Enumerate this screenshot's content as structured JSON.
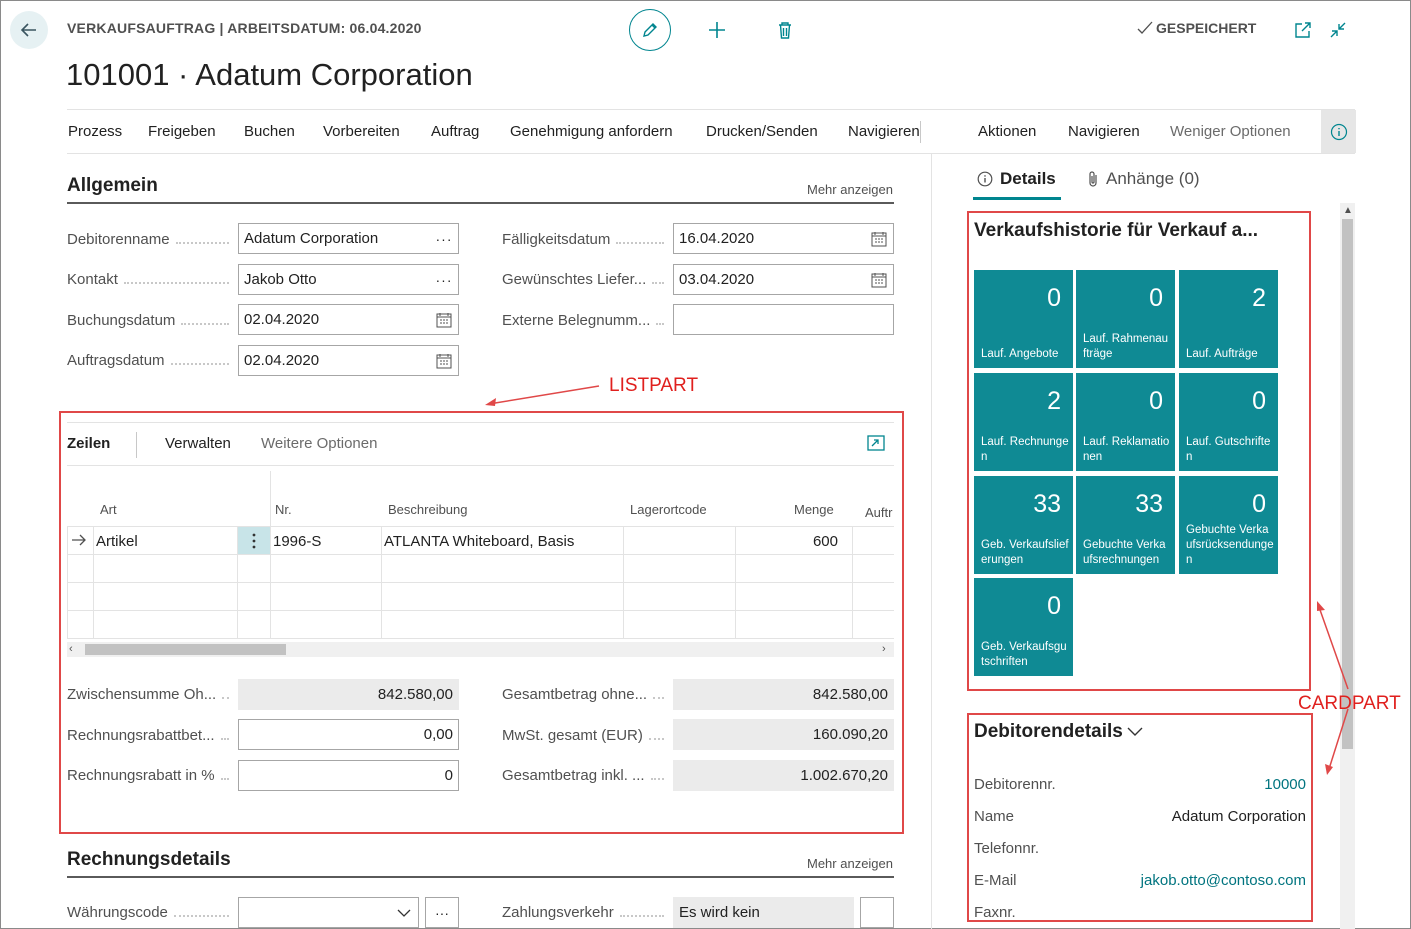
{
  "header": {
    "breadcrumb": "VERKAUFSAUFTRAG | ARBEITSDATUM: 06.04.2020",
    "title": "101001 · Adatum Corporation",
    "saved_label": "GESPEICHERT"
  },
  "actions": [
    "Prozess",
    "Freigeben",
    "Buchen",
    "Vorbereiten",
    "Auftrag",
    "Genehmigung anfordern",
    "Drucken/Senden",
    "Navigieren",
    "Aktionen",
    "Navigieren",
    "Weniger Optionen"
  ],
  "general": {
    "title": "Allgemein",
    "more": "Mehr anzeigen",
    "fields": {
      "debitorenname": {
        "label": "Debitorenname",
        "value": "Adatum Corporation"
      },
      "kontakt": {
        "label": "Kontakt",
        "value": "Jakob Otto"
      },
      "buchungsdatum": {
        "label": "Buchungsdatum",
        "value": "02.04.2020"
      },
      "auftragsdatum": {
        "label": "Auftragsdatum",
        "value": "02.04.2020"
      },
      "faelligkeitsdatum": {
        "label": "Fälligkeitsdatum",
        "value": "16.04.2020"
      },
      "gew_lieferdatum": {
        "label": "Gewünschtes Liefer...",
        "value": "03.04.2020"
      },
      "ext_belegnummer": {
        "label": "Externe Belegnumm...",
        "value": ""
      }
    }
  },
  "lines": {
    "tabs": {
      "zeilen": "Zeilen",
      "verwalten": "Verwalten",
      "weitere": "Weitere Optionen"
    },
    "columns": {
      "art": "Art",
      "nr": "Nr.",
      "beschreibung": "Beschreibung",
      "lagerortcode": "Lagerortcode",
      "menge": "Menge",
      "auftr": "Auftr"
    },
    "row": {
      "art": "Artikel",
      "nr": "1996-S",
      "beschreibung": "ATLANTA Whiteboard, Basis",
      "lagerortcode": "",
      "menge": "600"
    }
  },
  "totals": {
    "zwischensumme": {
      "label": "Zwischensumme Oh...",
      "value": "842.580,00"
    },
    "rechnungsrabattbetrag": {
      "label": "Rechnungsrabattbet...",
      "value": "0,00"
    },
    "rechnungsrabatt_pct": {
      "label": "Rechnungsrabatt in %",
      "value": "0"
    },
    "gesamt_ohne": {
      "label": "Gesamtbetrag ohne...",
      "value": "842.580,00"
    },
    "mwst": {
      "label": "MwSt. gesamt (EUR)",
      "value": "160.090,20"
    },
    "gesamt_inkl": {
      "label": "Gesamtbetrag inkl. ...",
      "value": "1.002.670,20"
    }
  },
  "invoice": {
    "title": "Rechnungsdetails",
    "more": "Mehr anzeigen",
    "waehrungscode_label": "Währungscode",
    "waehrungscode_value": "",
    "zahlungsverkehr_label": "Zahlungsverkehr",
    "zahlungsverkehr_value": "Es wird kein"
  },
  "factbox": {
    "tab_details": "Details",
    "tab_attachments": "Anhänge (0)",
    "history_title": "Verkaufshistorie für Verkauf a...",
    "tiles": [
      {
        "value": "0",
        "label": "Lauf. Angebote"
      },
      {
        "value": "0",
        "label": "Lauf. Rahmenaufträge"
      },
      {
        "value": "2",
        "label": "Lauf. Aufträge"
      },
      {
        "value": "2",
        "label": "Lauf. Rechnungen"
      },
      {
        "value": "0",
        "label": "Lauf. Reklamationen"
      },
      {
        "value": "0",
        "label": "Lauf. Gutschriften"
      },
      {
        "value": "33",
        "label": "Geb. Verkaufslieferungen"
      },
      {
        "value": "33",
        "label": "Gebuchte Verkaufsrechnungen"
      },
      {
        "value": "0",
        "label": "Gebuchte Verkaufsrücksendungen"
      },
      {
        "value": "0",
        "label": "Geb. Verkaufsgutschriften"
      }
    ],
    "customer_title": "Debitorendetails",
    "customer": {
      "nr_label": "Debitorennr.",
      "nr_value": "10000",
      "name_label": "Name",
      "name_value": "Adatum Corporation",
      "phone_label": "Telefonnr.",
      "phone_value": "",
      "email_label": "E-Mail",
      "email_value": "jakob.otto@contoso.com",
      "fax_label": "Faxnr.",
      "fax_value": ""
    }
  },
  "annotations": {
    "listpart": "LISTPART",
    "cardpart": "CARDPART"
  },
  "colors": {
    "accent": "#00858f",
    "tile": "#0f8a94",
    "annotation": "#e04848"
  }
}
